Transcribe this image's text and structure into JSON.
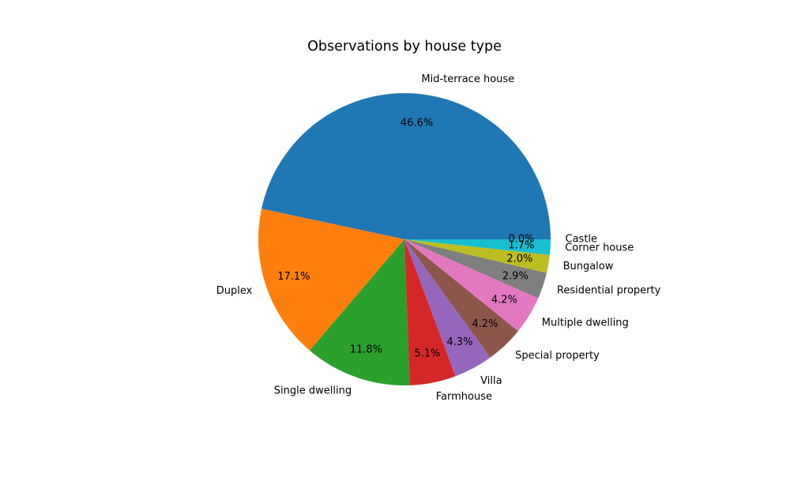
{
  "chart_data": {
    "type": "pie",
    "title": "Observations by house type",
    "start_angle_deg": 0,
    "direction": "counterclockwise",
    "legend": "none",
    "slices": [
      {
        "label": "Mid-terrace house",
        "percent": 46.6,
        "pct_label": "46.6%",
        "color": "#1f77b4"
      },
      {
        "label": "Duplex",
        "percent": 17.1,
        "pct_label": "17.1%",
        "color": "#ff7f0e"
      },
      {
        "label": "Single dwelling",
        "percent": 11.8,
        "pct_label": "11.8%",
        "color": "#2ca02c"
      },
      {
        "label": "Farmhouse",
        "percent": 5.1,
        "pct_label": "5.1%",
        "color": "#d62728"
      },
      {
        "label": "Villa",
        "percent": 4.3,
        "pct_label": "4.3%",
        "color": "#9467bd"
      },
      {
        "label": "Special property",
        "percent": 4.2,
        "pct_label": "4.2%",
        "color": "#8c564b"
      },
      {
        "label": "Multiple dwelling",
        "percent": 4.2,
        "pct_label": "4.2%",
        "color": "#e377c2"
      },
      {
        "label": "Residential property",
        "percent": 2.9,
        "pct_label": "2.9%",
        "color": "#7f7f7f"
      },
      {
        "label": "Bungalow",
        "percent": 2.0,
        "pct_label": "2.0%",
        "color": "#bcbd22"
      },
      {
        "label": "Corner house",
        "percent": 1.7,
        "pct_label": "1.7%",
        "color": "#17becf"
      },
      {
        "label": "Castle",
        "percent": 0.0,
        "pct_label": "0.0%",
        "color": "#1f77b4"
      }
    ]
  }
}
